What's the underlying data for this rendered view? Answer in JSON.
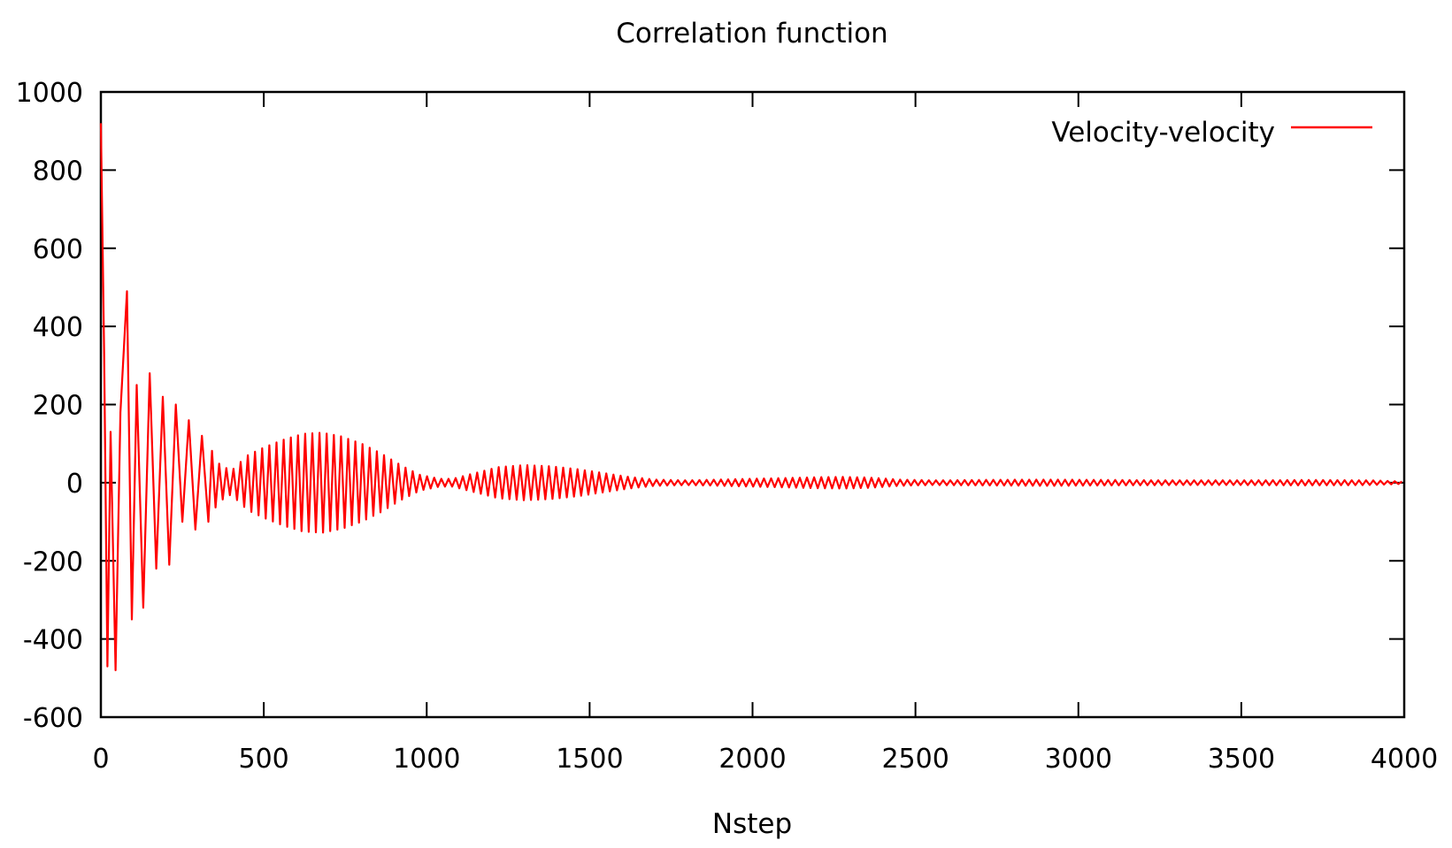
{
  "chart_data": {
    "type": "line",
    "title": "Correlation function",
    "xlabel": "Nstep",
    "ylabel": "",
    "xlim": [
      0,
      4000
    ],
    "ylim": [
      -600,
      1000
    ],
    "xticks": [
      "0",
      "500",
      "1000",
      "1500",
      "2000",
      "2500",
      "3000",
      "3500",
      "4000"
    ],
    "yticks": [
      "1000",
      "800",
      "600",
      "400",
      "200",
      "0",
      "-200",
      "-400",
      "-600"
    ],
    "xtick_values": [
      0,
      500,
      1000,
      1500,
      2000,
      2500,
      3000,
      3500,
      4000
    ],
    "ytick_values": [
      1000,
      800,
      600,
      400,
      200,
      0,
      -200,
      -400,
      -600
    ],
    "grid": false,
    "legend_position": "top-right",
    "series": [
      {
        "name": "Velocity-velocity",
        "color": "#ff0000",
        "style": "damped oscillation with beat envelope",
        "envelope_points": {
          "x": [
            0,
            10,
            20,
            30,
            45,
            60,
            80,
            95,
            110,
            130,
            150,
            170,
            190,
            210,
            230,
            250,
            270,
            290,
            310,
            330,
            360,
            400,
            450,
            500,
            560,
            620,
            680,
            740,
            800,
            860,
            920,
            980,
            1040,
            1080,
            1150,
            1220,
            1300,
            1380,
            1460,
            1540,
            1620,
            1700,
            1800,
            1900,
            2000,
            2100,
            2200,
            2280,
            2360,
            2450,
            2550,
            2700,
            2900,
            3100,
            3300,
            3500,
            3700,
            3900,
            4000
          ],
          "y": [
            920,
            330,
            -470,
            130,
            -480,
            180,
            490,
            -350,
            250,
            -320,
            280,
            -220,
            220,
            -210,
            200,
            -100,
            160,
            -120,
            120,
            -100,
            50,
            30,
            70,
            90,
            110,
            125,
            128,
            118,
            100,
            75,
            45,
            20,
            10,
            10,
            25,
            40,
            45,
            42,
            35,
            25,
            15,
            8,
            6,
            8,
            10,
            12,
            14,
            15,
            13,
            8,
            6,
            7,
            8,
            7,
            6,
            6,
            7,
            6,
            3
          ]
        }
      }
    ]
  }
}
